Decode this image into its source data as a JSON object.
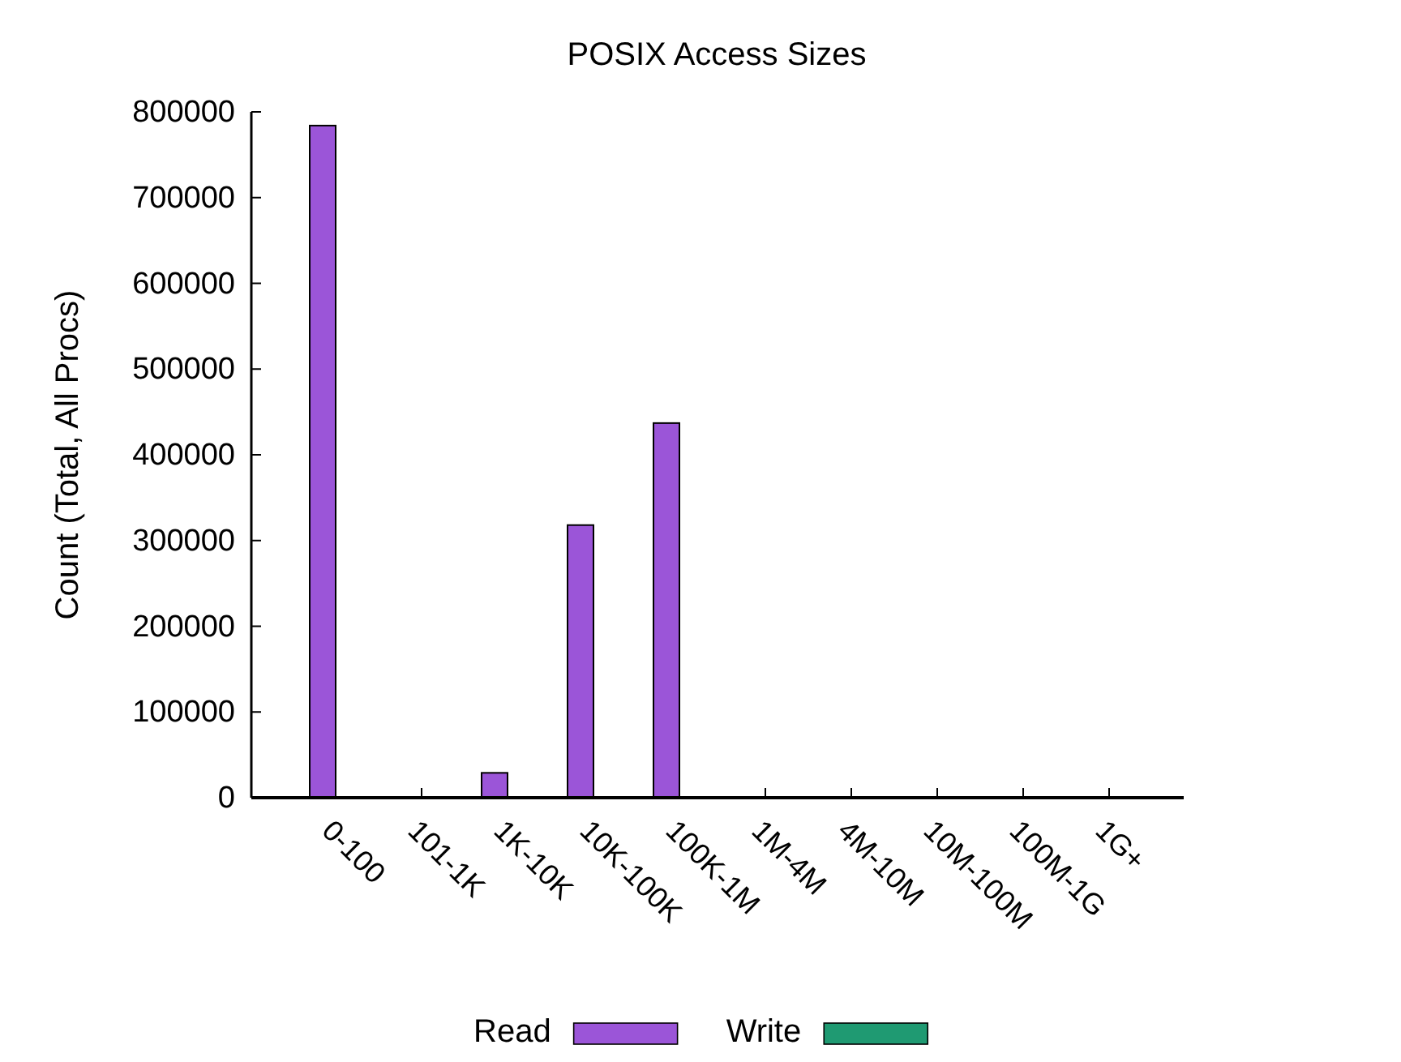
{
  "chart_data": {
    "type": "bar",
    "title": "POSIX Access Sizes",
    "ylabel": "Count (Total, All Procs)",
    "categories": [
      "0-100",
      "101-1K",
      "1K-10K",
      "10K-100K",
      "100K-1M",
      "1M-4M",
      "4M-10M",
      "10M-100M",
      "100M-1G",
      "1G+"
    ],
    "series": [
      {
        "name": "Read",
        "color": "#9b55d8",
        "values": [
          784000,
          0,
          29000,
          318000,
          437000,
          0,
          0,
          0,
          0,
          0
        ]
      },
      {
        "name": "Write",
        "color": "#1f9a72",
        "values": [
          0,
          0,
          0,
          0,
          0,
          0,
          0,
          0,
          0,
          0
        ]
      }
    ],
    "ylim": [
      0,
      800000
    ],
    "yticks": [
      0,
      100000,
      200000,
      300000,
      400000,
      500000,
      600000,
      700000,
      800000
    ],
    "grid": false,
    "legend": "bottom"
  }
}
